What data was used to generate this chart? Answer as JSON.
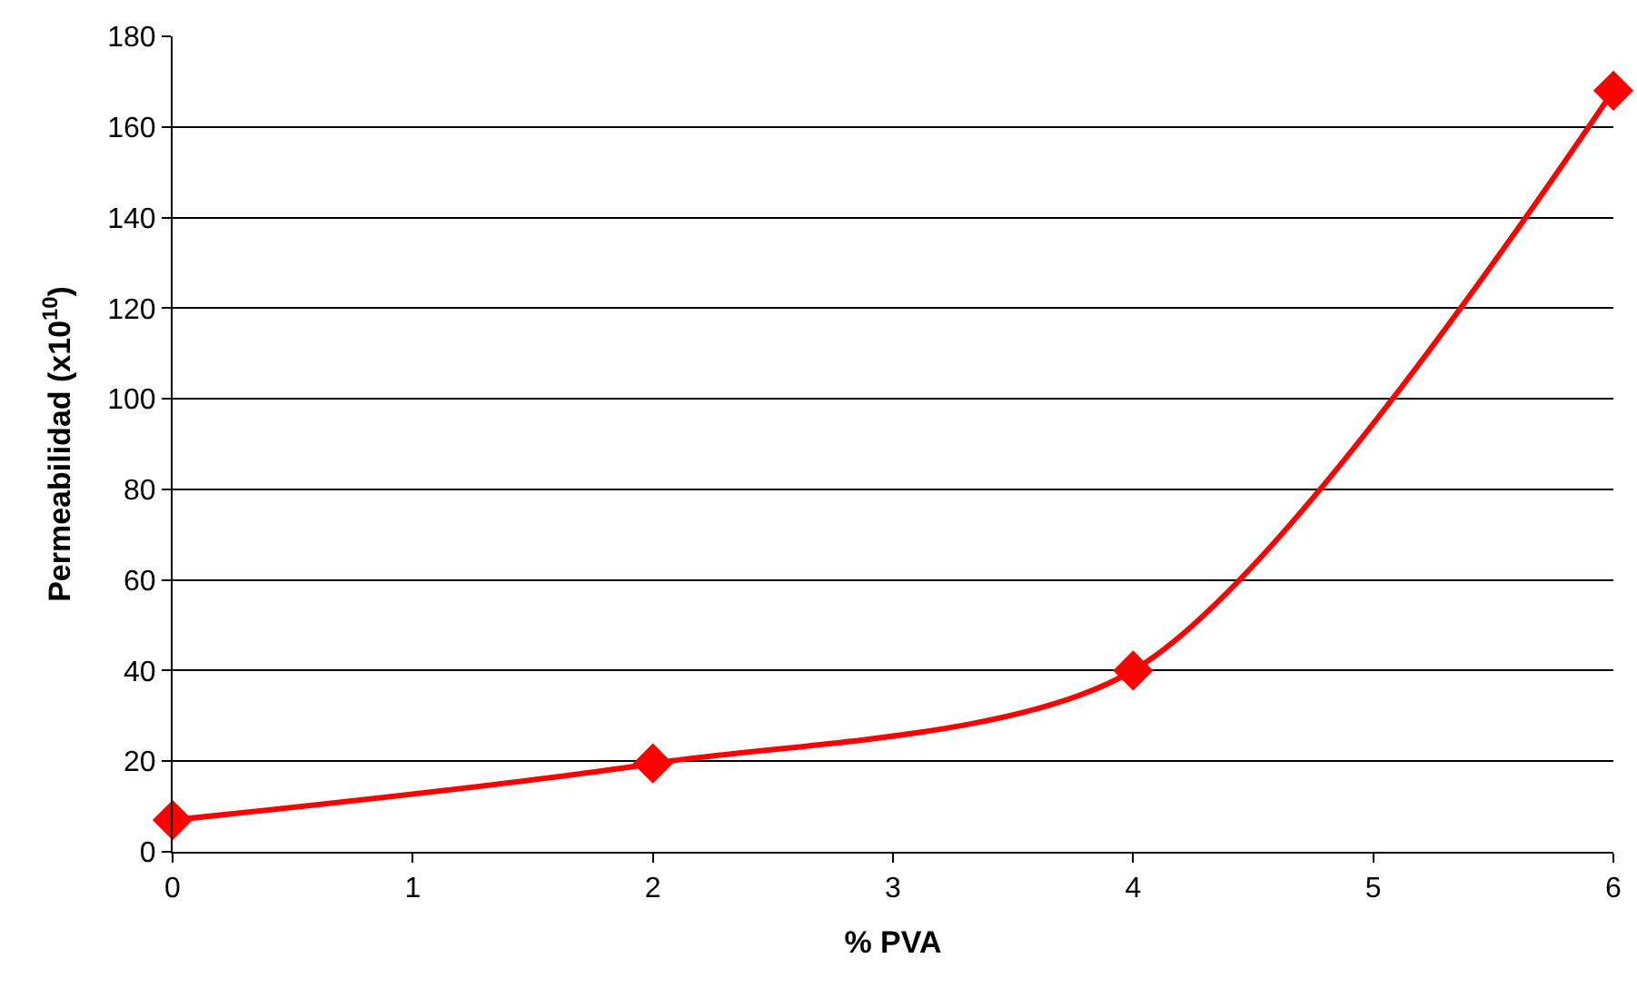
{
  "chart_data": {
    "type": "line",
    "xlabel": "% PVA",
    "ylabel": "Permeabilidad (x10$^{10}$)",
    "x": [
      0,
      2,
      4,
      6
    ],
    "series": [
      {
        "color": "#ff0000",
        "values": [
          7,
          19.5,
          40,
          168
        ]
      }
    ],
    "xlim": [
      0,
      6
    ],
    "xticks": [
      0,
      1,
      2,
      3,
      4,
      5,
      6
    ],
    "ylim": [
      0,
      180
    ],
    "yticks": [
      0,
      20,
      40,
      60,
      80,
      100,
      120,
      140,
      160,
      180
    ],
    "grid": "y",
    "marker": "diamond",
    "line_style": "solid",
    "legend": false
  }
}
